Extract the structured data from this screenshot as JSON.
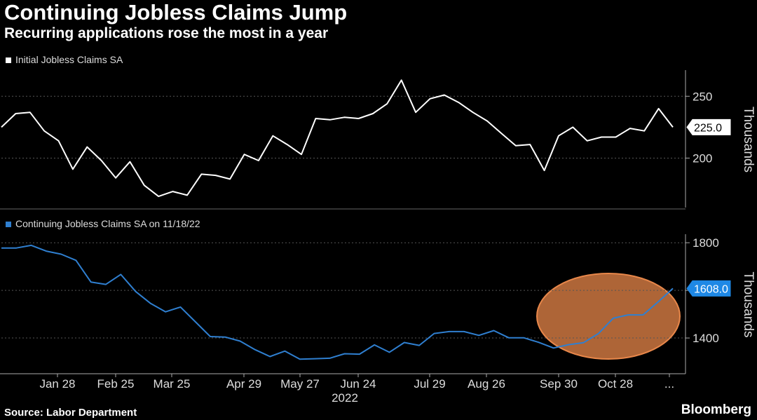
{
  "header": {
    "title": "Continuing Jobless Claims Jump",
    "subtitle": "Recurring applications rose the most in a year"
  },
  "footer": {
    "source": "Source: Labor Department",
    "brand": "Bloomberg"
  },
  "colors": {
    "background": "#000000",
    "initial_line": "#ffffff",
    "continuing_line": "#2f7fd0",
    "highlight": "#e8874a",
    "grid": "#555555"
  },
  "chart_data": [
    {
      "type": "line",
      "legend": "Initial Jobless Claims SA",
      "ylabel": "Thousands",
      "ylim": [
        160,
        270
      ],
      "yticks": [
        200,
        250
      ],
      "last_value_label": "225.0",
      "grid": true,
      "series": [
        {
          "name": "Initial Jobless Claims SA",
          "values": [
            225,
            236,
            237,
            222,
            214,
            191,
            209,
            198,
            184,
            197,
            178,
            169,
            173,
            170,
            187,
            186,
            183,
            203,
            198,
            218,
            211,
            203,
            232,
            231,
            233,
            232,
            236,
            244,
            263,
            237,
            248,
            251,
            245,
            237,
            230,
            220,
            210,
            211,
            190,
            218,
            225,
            214,
            217,
            217,
            224,
            222,
            240,
            225
          ]
        }
      ]
    },
    {
      "type": "line",
      "legend": "Continuing Jobless Claims SA on 11/18/22",
      "ylabel": "Thousands",
      "ylim": [
        1250,
        1830
      ],
      "yticks": [
        1400,
        1600,
        1800
      ],
      "last_value_label": "1608.0",
      "grid": true,
      "series": [
        {
          "name": "Continuing Jobless Claims SA on 11/18/22",
          "values": [
            1778,
            1778,
            1789,
            1765,
            1752,
            1726,
            1635,
            1625,
            1667,
            1595,
            1545,
            1510,
            1530,
            1468,
            1406,
            1404,
            1387,
            1351,
            1322,
            1345,
            1311,
            1313,
            1315,
            1334,
            1332,
            1371,
            1340,
            1381,
            1369,
            1419,
            1427,
            1427,
            1411,
            1431,
            1401,
            1401,
            1382,
            1358,
            1372,
            1380,
            1418,
            1483,
            1497,
            1497,
            1551,
            1608
          ]
        }
      ]
    },
    {
      "type": "line",
      "role": "shared-x-axis",
      "tick_labels": [
        "Jan 28",
        "Feb 25",
        "Mar 25",
        "Apr 29",
        "May 27",
        "Jun 24",
        "Jul 29",
        "Aug 26",
        "Sep 30",
        "Oct 28",
        "..."
      ],
      "year_label": "2022"
    }
  ]
}
